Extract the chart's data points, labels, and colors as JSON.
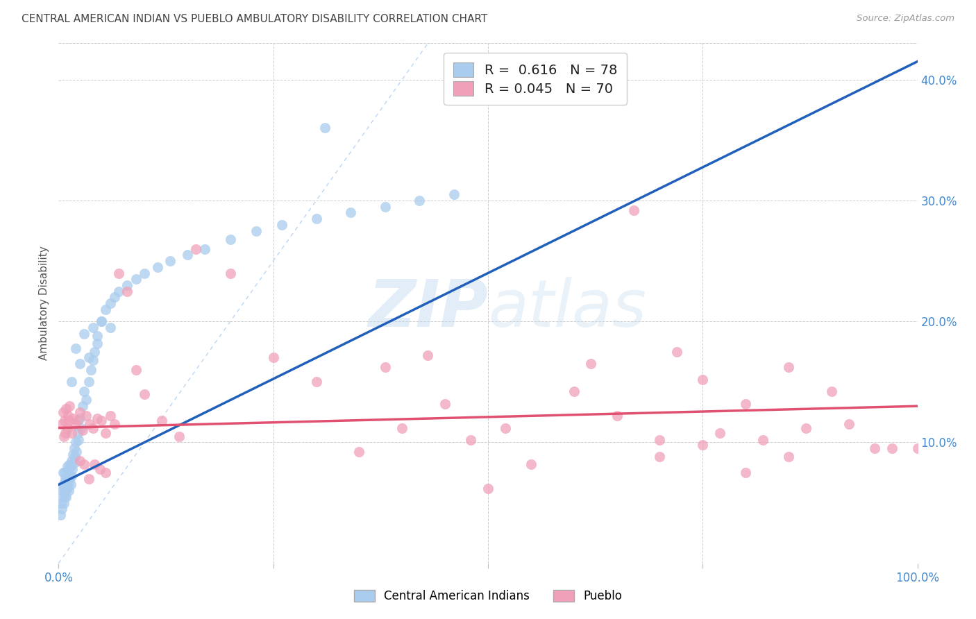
{
  "title": "CENTRAL AMERICAN INDIAN VS PUEBLO AMBULATORY DISABILITY CORRELATION CHART",
  "source": "Source: ZipAtlas.com",
  "ylabel": "Ambulatory Disability",
  "xlim": [
    0.0,
    1.0
  ],
  "ylim": [
    0.0,
    0.43
  ],
  "blue_R": 0.616,
  "blue_N": 78,
  "pink_R": 0.045,
  "pink_N": 70,
  "blue_fill": "#AACCEE",
  "blue_line": "#2060BB",
  "pink_fill": "#F0A0B8",
  "pink_line": "#E05070",
  "diag_color": "#AACCEE",
  "grid_color": "#CCCCCC",
  "bg_color": "#FFFFFF",
  "tick_color": "#4488CC",
  "title_color": "#444444",
  "source_color": "#999999",
  "legend_text_color": "#222222",
  "legend_num_color": "#3377CC",
  "blue_x": [
    0.002,
    0.003,
    0.004,
    0.004,
    0.005,
    0.005,
    0.005,
    0.006,
    0.006,
    0.007,
    0.007,
    0.007,
    0.008,
    0.008,
    0.009,
    0.009,
    0.01,
    0.01,
    0.01,
    0.011,
    0.011,
    0.012,
    0.012,
    0.013,
    0.013,
    0.014,
    0.014,
    0.015,
    0.015,
    0.016,
    0.017,
    0.018,
    0.018,
    0.019,
    0.02,
    0.021,
    0.022,
    0.023,
    0.025,
    0.026,
    0.028,
    0.03,
    0.032,
    0.035,
    0.038,
    0.04,
    0.042,
    0.045,
    0.05,
    0.055,
    0.06,
    0.065,
    0.07,
    0.08,
    0.09,
    0.1,
    0.115,
    0.13,
    0.15,
    0.17,
    0.2,
    0.23,
    0.26,
    0.3,
    0.34,
    0.38,
    0.42,
    0.46,
    0.015,
    0.02,
    0.025,
    0.03,
    0.035,
    0.04,
    0.045,
    0.05,
    0.06,
    0.31
  ],
  "blue_y": [
    0.04,
    0.05,
    0.045,
    0.06,
    0.055,
    0.065,
    0.075,
    0.05,
    0.06,
    0.055,
    0.065,
    0.075,
    0.06,
    0.07,
    0.055,
    0.068,
    0.062,
    0.07,
    0.08,
    0.065,
    0.075,
    0.06,
    0.078,
    0.07,
    0.082,
    0.065,
    0.08,
    0.072,
    0.085,
    0.078,
    0.09,
    0.083,
    0.095,
    0.088,
    0.1,
    0.092,
    0.108,
    0.102,
    0.12,
    0.112,
    0.13,
    0.142,
    0.135,
    0.15,
    0.16,
    0.168,
    0.175,
    0.182,
    0.2,
    0.21,
    0.215,
    0.22,
    0.225,
    0.23,
    0.235,
    0.24,
    0.245,
    0.25,
    0.255,
    0.26,
    0.268,
    0.275,
    0.28,
    0.285,
    0.29,
    0.295,
    0.3,
    0.305,
    0.15,
    0.178,
    0.165,
    0.19,
    0.17,
    0.195,
    0.188,
    0.2,
    0.195,
    0.36
  ],
  "pink_x": [
    0.004,
    0.005,
    0.006,
    0.007,
    0.008,
    0.009,
    0.01,
    0.011,
    0.012,
    0.013,
    0.015,
    0.017,
    0.019,
    0.022,
    0.025,
    0.028,
    0.032,
    0.036,
    0.04,
    0.045,
    0.05,
    0.055,
    0.06,
    0.065,
    0.07,
    0.08,
    0.09,
    0.1,
    0.12,
    0.14,
    0.16,
    0.2,
    0.25,
    0.3,
    0.35,
    0.4,
    0.45,
    0.5,
    0.55,
    0.6,
    0.65,
    0.7,
    0.75,
    0.8,
    0.85,
    0.9,
    0.95,
    1.0,
    0.38,
    0.43,
    0.48,
    0.52,
    0.62,
    0.67,
    0.72,
    0.77,
    0.82,
    0.87,
    0.92,
    0.97,
    0.025,
    0.03,
    0.035,
    0.042,
    0.048,
    0.055,
    0.7,
    0.75,
    0.8,
    0.85
  ],
  "pink_y": [
    0.115,
    0.125,
    0.105,
    0.118,
    0.108,
    0.128,
    0.112,
    0.122,
    0.118,
    0.13,
    0.108,
    0.12,
    0.115,
    0.118,
    0.125,
    0.11,
    0.122,
    0.115,
    0.112,
    0.12,
    0.118,
    0.108,
    0.122,
    0.115,
    0.24,
    0.225,
    0.16,
    0.14,
    0.118,
    0.105,
    0.26,
    0.24,
    0.17,
    0.15,
    0.092,
    0.112,
    0.132,
    0.062,
    0.082,
    0.142,
    0.122,
    0.102,
    0.152,
    0.132,
    0.162,
    0.142,
    0.095,
    0.095,
    0.162,
    0.172,
    0.102,
    0.112,
    0.165,
    0.292,
    0.175,
    0.108,
    0.102,
    0.112,
    0.115,
    0.095,
    0.085,
    0.082,
    0.07,
    0.082,
    0.078,
    0.075,
    0.088,
    0.098,
    0.075,
    0.088
  ]
}
